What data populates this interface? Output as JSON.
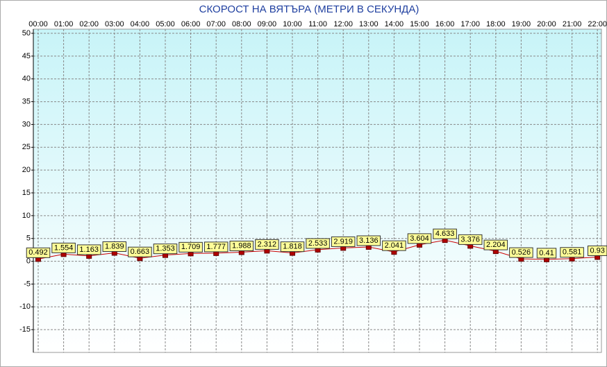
{
  "chart_data": {
    "type": "line",
    "title": "СКОРОСТ НА ВЯТЪРА (МЕТРИ В СЕКУНДА)",
    "categories": [
      "00:00",
      "01:00",
      "02:00",
      "03:00",
      "04:00",
      "05:00",
      "06:00",
      "07:00",
      "08:00",
      "09:00",
      "10:00",
      "11:00",
      "12:00",
      "13:00",
      "14:00",
      "15:00",
      "16:00",
      "17:00",
      "18:00",
      "19:00",
      "20:00",
      "21:00",
      "22:00"
    ],
    "series": [
      {
        "name": "СКОРОСТ НА ВЯТЪРА",
        "color": "#cc0000",
        "values": [
          0.492,
          1.554,
          1.163,
          1.839,
          0.663,
          1.353,
          1.709,
          1.777,
          1.988,
          2.312,
          1.818,
          2.533,
          2.919,
          3.136,
          2.041,
          3.604,
          4.633,
          3.376,
          2.204,
          0.526,
          0.41,
          0.581,
          0.93
        ]
      }
    ],
    "ylim": [
      -20,
      50
    ],
    "yticks": [
      50,
      45,
      40,
      35,
      30,
      25,
      20,
      15,
      10,
      5,
      0,
      -5,
      -10,
      -15
    ],
    "grid": true
  }
}
